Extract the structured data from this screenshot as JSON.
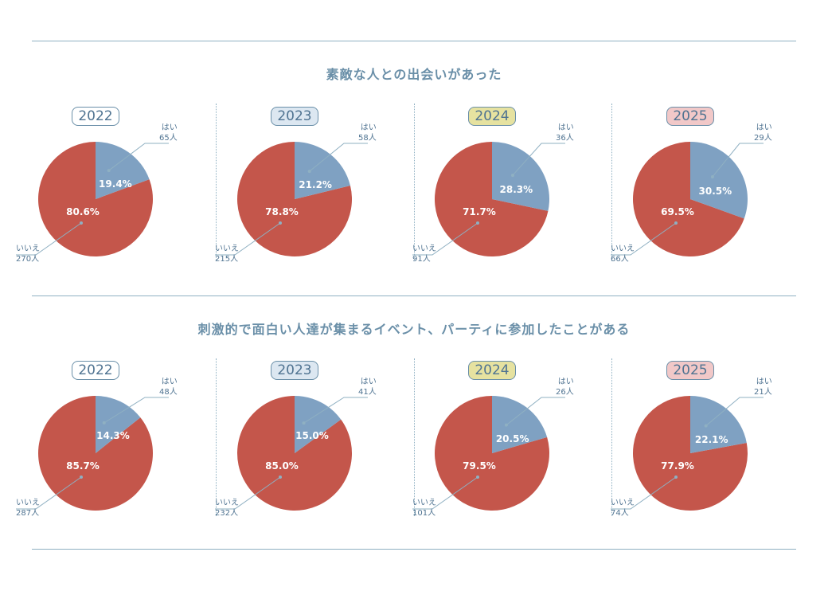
{
  "colors": {
    "yes": "#7fa1c2",
    "no": "#c4564b",
    "line": "#8fb0c2",
    "text": "#4f7391"
  },
  "year_badge_colors": {
    "2022": "#ffffff",
    "2023": "#dce7f1",
    "2024": "#e6e2a0",
    "2025": "#f1c8c8"
  },
  "chart_data": [
    {
      "type": "pie",
      "title": "素敵な人との出会いがあった",
      "panels": [
        {
          "year": "2022",
          "yes_label": "はい",
          "yes_count": "65人",
          "yes_pct": "19.4%",
          "yes_value": 19.4,
          "no_label": "いいえ",
          "no_count": "270人",
          "no_pct": "80.6%",
          "no_value": 80.6
        },
        {
          "year": "2023",
          "yes_label": "はい",
          "yes_count": "58人",
          "yes_pct": "21.2%",
          "yes_value": 21.2,
          "no_label": "いいえ",
          "no_count": "215人",
          "no_pct": "78.8%",
          "no_value": 78.8
        },
        {
          "year": "2024",
          "yes_label": "はい",
          "yes_count": "36人",
          "yes_pct": "28.3%",
          "yes_value": 28.3,
          "no_label": "いいえ",
          "no_count": "91人",
          "no_pct": "71.7%",
          "no_value": 71.7
        },
        {
          "year": "2025",
          "yes_label": "はい",
          "yes_count": "29人",
          "yes_pct": "30.5%",
          "yes_value": 30.5,
          "no_label": "いいえ",
          "no_count": "66人",
          "no_pct": "69.5%",
          "no_value": 69.5
        }
      ]
    },
    {
      "type": "pie",
      "title": "刺激的で面白い人達が集まるイベント、パーティに参加したことがある",
      "panels": [
        {
          "year": "2022",
          "yes_label": "はい",
          "yes_count": "48人",
          "yes_pct": "14.3%",
          "yes_value": 14.3,
          "no_label": "いいえ",
          "no_count": "287人",
          "no_pct": "85.7%",
          "no_value": 85.7
        },
        {
          "year": "2023",
          "yes_label": "はい",
          "yes_count": "41人",
          "yes_pct": "15.0%",
          "yes_value": 15.0,
          "no_label": "いいえ",
          "no_count": "232人",
          "no_pct": "85.0%",
          "no_value": 85.0
        },
        {
          "year": "2024",
          "yes_label": "はい",
          "yes_count": "26人",
          "yes_pct": "20.5%",
          "yes_value": 20.5,
          "no_label": "いいえ",
          "no_count": "101人",
          "no_pct": "79.5%",
          "no_value": 79.5
        },
        {
          "year": "2025",
          "yes_label": "はい",
          "yes_count": "21人",
          "yes_pct": "22.1%",
          "yes_value": 22.1,
          "no_label": "いいえ",
          "no_count": "74人",
          "no_pct": "77.9%",
          "no_value": 77.9
        }
      ]
    }
  ]
}
